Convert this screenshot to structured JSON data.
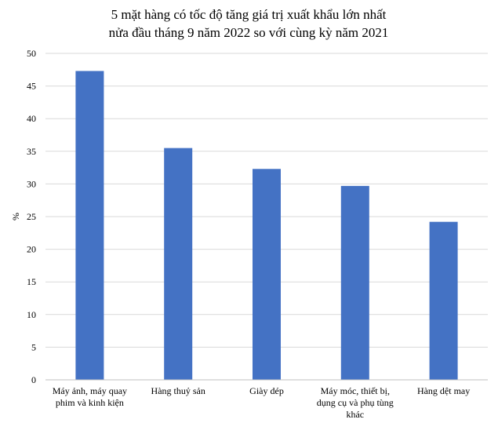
{
  "chart_data": {
    "type": "bar",
    "title_lines": [
      "5 mặt hàng có tốc độ tăng giá trị xuất khẩu lớn nhất",
      "nửa đầu tháng 9 năm 2022 so với cùng kỳ năm 2021"
    ],
    "ylabel": "%",
    "xlabel": "",
    "ylim": [
      0,
      50
    ],
    "ytick_step": 5,
    "grid": true,
    "legend": "none",
    "bar_color": "#4472c4",
    "categories": [
      [
        "Máy ảnh, máy quay",
        "phim và kinh kiện"
      ],
      [
        "Hàng thuỷ sản"
      ],
      [
        "Giày dép"
      ],
      [
        "Máy móc, thiết bị,",
        "dụng cụ và phụ tùng",
        "khác"
      ],
      [
        "Hàng dệt may"
      ]
    ],
    "values": [
      47.3,
      35.5,
      32.3,
      29.7,
      24.2
    ]
  }
}
